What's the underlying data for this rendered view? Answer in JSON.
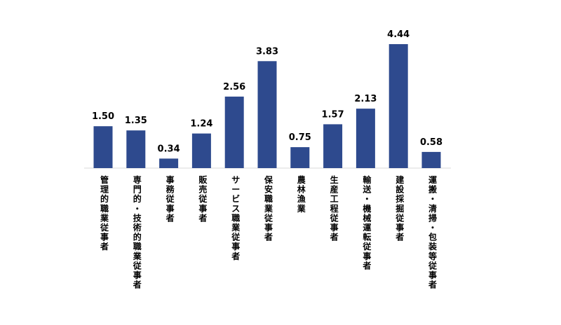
{
  "chart_data": {
    "type": "bar",
    "categories": [
      "管理的職業従事者",
      "専門的・技術的職業従事者",
      "事務従事者",
      "販売従事者",
      "サービス職業従事者",
      "保安職業従事者",
      "農林漁業",
      "生産工程従事者",
      "輸送・機械運転従事者",
      "建設採掘従事者",
      "運搬・清掃・包装等従事者"
    ],
    "values": [
      1.5,
      1.35,
      0.34,
      1.24,
      2.56,
      3.83,
      0.75,
      1.57,
      2.13,
      4.44,
      0.58
    ],
    "value_labels": [
      "1.50",
      "1.35",
      "0.34",
      "1.24",
      "2.56",
      "3.83",
      "0.75",
      "1.57",
      "2.13",
      "4.44",
      "0.58"
    ],
    "ylim": [
      0,
      4.44
    ],
    "bar_color": "#2E4A8E",
    "axis_color": "#D9D9D9",
    "grid": false,
    "legend": "none"
  }
}
